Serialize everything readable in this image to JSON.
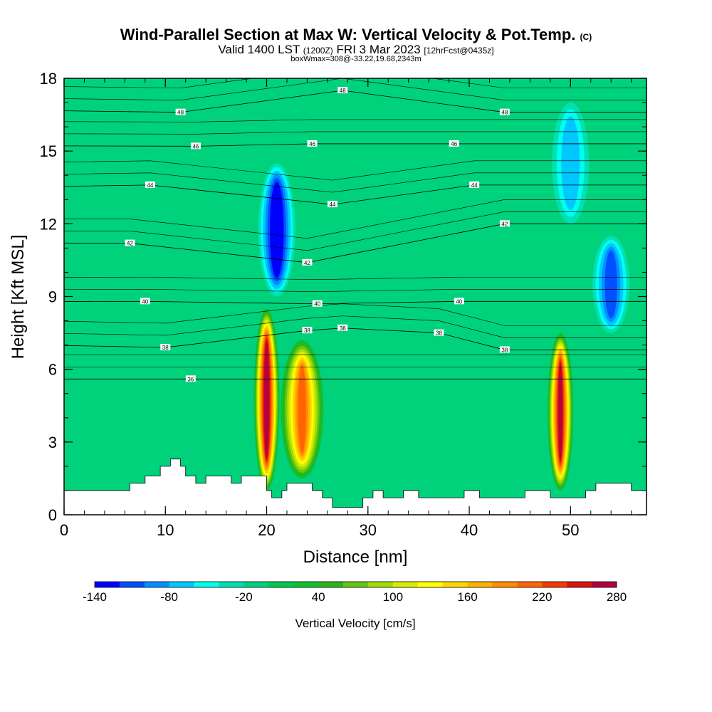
{
  "chart_data": {
    "type": "heatmap",
    "title": "Wind-Parallel Section at Max W: Vertical Velocity & Pot.Temp.",
    "title_tag": "(C)",
    "subtitle_valid": "Valid 1400 LST",
    "subtitle_z": "(1200Z)",
    "subtitle_date": "FRI 3 Mar 2023",
    "subtitle_fcst": "[12hrFcst@0435z]",
    "subtitle_box": "boxWmax=308@-33.22,19.68,2343m",
    "xlabel": "Distance [nm]",
    "ylabel": "Height [Kft MSL]",
    "xlim": [
      0,
      57.5
    ],
    "ylim": [
      0,
      18
    ],
    "xticks": [
      0,
      10,
      20,
      30,
      40,
      50
    ],
    "yticks": [
      0,
      3,
      6,
      9,
      12,
      15,
      18
    ],
    "colorbar": {
      "title": "Vertical Velocity [cm/s]",
      "min": -140,
      "max": 280,
      "step": 20,
      "tick_labels": [
        -140,
        -80,
        -20,
        40,
        100,
        160,
        220,
        280
      ],
      "colors": [
        "#0000ff",
        "#0050ff",
        "#0090ff",
        "#00c8ff",
        "#00ffee",
        "#00e0b4",
        "#00d27c",
        "#00c850",
        "#10c030",
        "#2cb41c",
        "#64c812",
        "#a0dc0a",
        "#d8ec04",
        "#ffff00",
        "#ffd600",
        "#ffb000",
        "#ff8c00",
        "#ff6400",
        "#f03c00",
        "#d81410",
        "#b40040"
      ]
    },
    "updrafts": [
      {
        "x": 20.0,
        "z_bottom": 1.0,
        "z_top": 8.5,
        "w_max": 280
      },
      {
        "x": 23.5,
        "z_bottom": 1.5,
        "z_top": 7.2,
        "w_max": 200
      },
      {
        "x": 49.0,
        "z_bottom": 1.0,
        "z_top": 7.5,
        "w_max": 260
      }
    ],
    "downdrafts": [
      {
        "x": 21.0,
        "z_bottom": 9.0,
        "z_top": 14.5,
        "w_min": -140
      },
      {
        "x": 54.0,
        "z_bottom": 7.5,
        "z_top": 11.5,
        "w_min": -100
      },
      {
        "x": 50.0,
        "z_bottom": 12.0,
        "z_top": 17.0,
        "w_min": -60
      }
    ],
    "theta_contour_labels": [
      {
        "value": 36,
        "x": 12.5,
        "z": 5.6
      },
      {
        "value": 38,
        "x": 10.0,
        "z": 6.9
      },
      {
        "value": 38,
        "x": 24.0,
        "z": 7.6
      },
      {
        "value": 38,
        "x": 27.5,
        "z": 7.7
      },
      {
        "value": 38,
        "x": 37.0,
        "z": 7.5
      },
      {
        "value": 38,
        "x": 43.5,
        "z": 6.8
      },
      {
        "value": 40,
        "x": 8.0,
        "z": 8.8
      },
      {
        "value": 40,
        "x": 25.0,
        "z": 8.7
      },
      {
        "value": 40,
        "x": 39.0,
        "z": 8.8
      },
      {
        "value": 42,
        "x": 6.5,
        "z": 11.2
      },
      {
        "value": 42,
        "x": 24.0,
        "z": 10.4
      },
      {
        "value": 42,
        "x": 43.5,
        "z": 12.0
      },
      {
        "value": 44,
        "x": 8.5,
        "z": 13.6
      },
      {
        "value": 44,
        "x": 26.5,
        "z": 12.8
      },
      {
        "value": 44,
        "x": 40.5,
        "z": 13.6
      },
      {
        "value": 46,
        "x": 13.0,
        "z": 15.2
      },
      {
        "value": 46,
        "x": 24.5,
        "z": 15.3
      },
      {
        "value": 46,
        "x": 38.5,
        "z": 15.3
      },
      {
        "value": 48,
        "x": 11.5,
        "z": 16.6
      },
      {
        "value": 48,
        "x": 27.5,
        "z": 17.5
      },
      {
        "value": 48,
        "x": 43.5,
        "z": 16.6
      }
    ],
    "terrain": [
      {
        "x": 0,
        "z": 1.0
      },
      {
        "x": 6.5,
        "z": 1.0
      },
      {
        "x": 6.5,
        "z": 1.3
      },
      {
        "x": 8,
        "z": 1.3
      },
      {
        "x": 8,
        "z": 1.6
      },
      {
        "x": 9.5,
        "z": 1.6
      },
      {
        "x": 9.5,
        "z": 2.0
      },
      {
        "x": 10.5,
        "z": 2.0
      },
      {
        "x": 10.5,
        "z": 2.3
      },
      {
        "x": 11.5,
        "z": 2.3
      },
      {
        "x": 11.5,
        "z": 2.0
      },
      {
        "x": 12,
        "z": 2.0
      },
      {
        "x": 12,
        "z": 1.6
      },
      {
        "x": 13,
        "z": 1.6
      },
      {
        "x": 13,
        "z": 1.3
      },
      {
        "x": 14,
        "z": 1.3
      },
      {
        "x": 14,
        "z": 1.6
      },
      {
        "x": 16.5,
        "z": 1.6
      },
      {
        "x": 16.5,
        "z": 1.3
      },
      {
        "x": 17.5,
        "z": 1.3
      },
      {
        "x": 17.5,
        "z": 1.6
      },
      {
        "x": 20,
        "z": 1.6
      },
      {
        "x": 20,
        "z": 1.0
      },
      {
        "x": 20.5,
        "z": 1.0
      },
      {
        "x": 20.5,
        "z": 0.7
      },
      {
        "x": 21.5,
        "z": 0.7
      },
      {
        "x": 21.5,
        "z": 1.0
      },
      {
        "x": 22,
        "z": 1.0
      },
      {
        "x": 22,
        "z": 1.3
      },
      {
        "x": 24.5,
        "z": 1.3
      },
      {
        "x": 24.5,
        "z": 1.0
      },
      {
        "x": 25.5,
        "z": 1.0
      },
      {
        "x": 25.5,
        "z": 0.7
      },
      {
        "x": 26.5,
        "z": 0.7
      },
      {
        "x": 26.5,
        "z": 0.3
      },
      {
        "x": 29.5,
        "z": 0.3
      },
      {
        "x": 29.5,
        "z": 0.7
      },
      {
        "x": 30.5,
        "z": 0.7
      },
      {
        "x": 30.5,
        "z": 1.0
      },
      {
        "x": 31.5,
        "z": 1.0
      },
      {
        "x": 31.5,
        "z": 0.7
      },
      {
        "x": 33.5,
        "z": 0.7
      },
      {
        "x": 33.5,
        "z": 1.0
      },
      {
        "x": 35,
        "z": 1.0
      },
      {
        "x": 35,
        "z": 0.7
      },
      {
        "x": 39.5,
        "z": 0.7
      },
      {
        "x": 39.5,
        "z": 1.0
      },
      {
        "x": 41,
        "z": 1.0
      },
      {
        "x": 41,
        "z": 0.7
      },
      {
        "x": 45.5,
        "z": 0.7
      },
      {
        "x": 45.5,
        "z": 1.0
      },
      {
        "x": 48,
        "z": 1.0
      },
      {
        "x": 48,
        "z": 0.7
      },
      {
        "x": 50,
        "z": 0.7
      },
      {
        "x": 50,
        "z": 0.7
      },
      {
        "x": 51.5,
        "z": 0.7
      },
      {
        "x": 51.5,
        "z": 1.0
      },
      {
        "x": 52.5,
        "z": 1.0
      },
      {
        "x": 52.5,
        "z": 1.3
      },
      {
        "x": 56,
        "z": 1.3
      },
      {
        "x": 56,
        "z": 1.0
      },
      {
        "x": 57.5,
        "z": 1.0
      }
    ]
  }
}
